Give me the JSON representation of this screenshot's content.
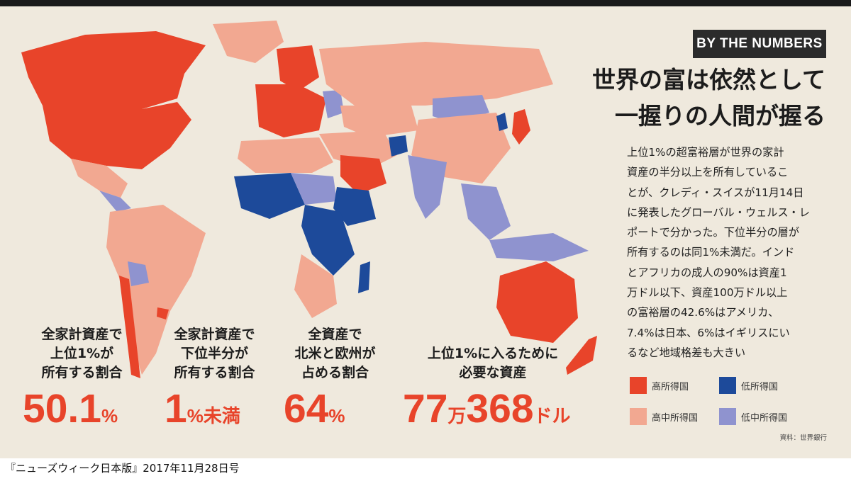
{
  "tag": "BY THE NUMBERS",
  "headline": [
    "世界の富は依然として",
    "一握りの人間が握る"
  ],
  "body_lines": [
    "上位1%の超富裕層が世界の家計",
    "資産の半分以上を所有しているこ",
    "とが、クレディ・スイスが11月14日",
    "に発表したグローバル・ウェルス・レ",
    "ポートで分かった。下位半分の層が",
    "所有するのは同1%未満だ。インド",
    "とアフリカの成人の90%は資産1",
    "万ドル以下、資産100万ドル以上",
    "の富裕層の42.6%はアメリカ、",
    "7.4%は日本、6%はイギリスにい",
    "るなど地域格差も大きい"
  ],
  "legend": [
    {
      "label": "高所得国",
      "color": "#e8442a"
    },
    {
      "label": "低所得国",
      "color": "#1d4a9a"
    },
    {
      "label": "高中所得国",
      "color": "#f2a891"
    },
    {
      "label": "低中所得国",
      "color": "#8f93cf"
    }
  ],
  "source": "資料：世界銀行",
  "stats": [
    {
      "label": [
        "全家計資産で",
        "上位1%が",
        "所有する割合"
      ],
      "value": "50.1",
      "unit": "%"
    },
    {
      "label": [
        "全家計資産で",
        "下位半分が",
        "所有する割合"
      ],
      "value": "1",
      "unit": "%未満"
    },
    {
      "label": [
        "全資産で",
        "北米と欧州が",
        "占める割合"
      ],
      "value": "64",
      "unit": "%"
    },
    {
      "label": [
        "上位1%に入るために",
        "必要な資産"
      ],
      "value_a": "77",
      "unit_a": "万",
      "value_b": "368",
      "unit_b": "ドル"
    }
  ],
  "caption": "『ニューズウィーク日本版』2017年11月28日号",
  "colors": {
    "high": "#e8442a",
    "upper_middle": "#f2a891",
    "lower_middle": "#8f93cf",
    "low": "#1d4a9a",
    "background": "#efe9dd"
  }
}
